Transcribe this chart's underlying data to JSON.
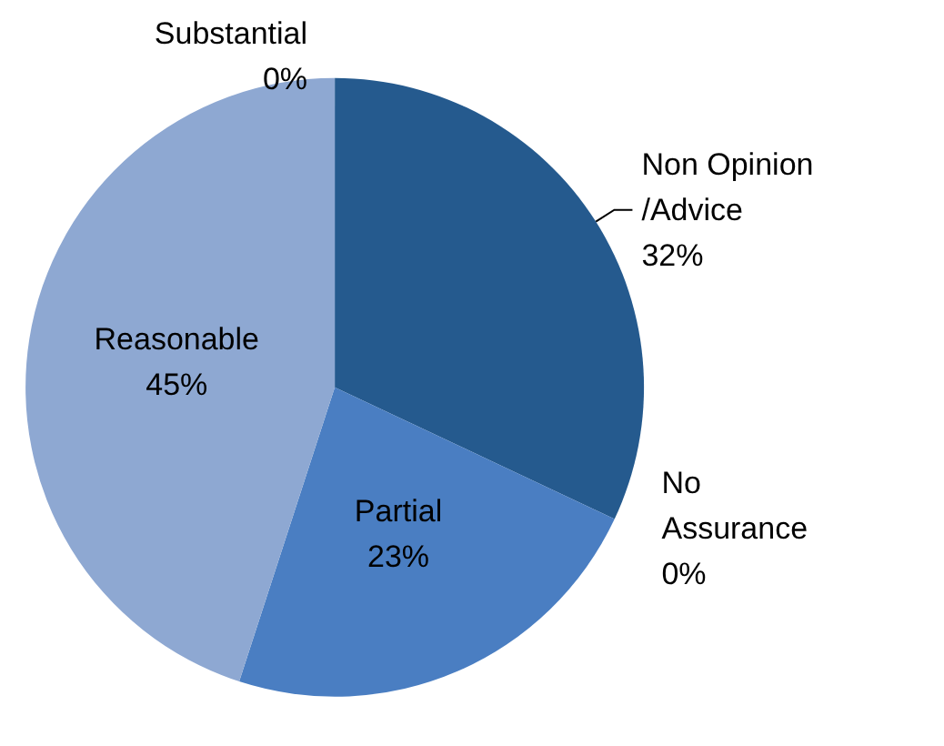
{
  "chart_data": {
    "type": "pie",
    "categories": [
      "Non Opinion/Advice",
      "No Assurance",
      "Partial",
      "Reasonable",
      "Substantial"
    ],
    "values": [
      32,
      0,
      23,
      45,
      0
    ],
    "colors": [
      "#255a8e",
      "#1f4e79",
      "#4a7ec2",
      "#8ea8d2",
      "#b9c9e4"
    ],
    "value_labels": [
      "32%",
      "0%",
      "23%",
      "45%",
      "0%"
    ],
    "legend": false
  }
}
